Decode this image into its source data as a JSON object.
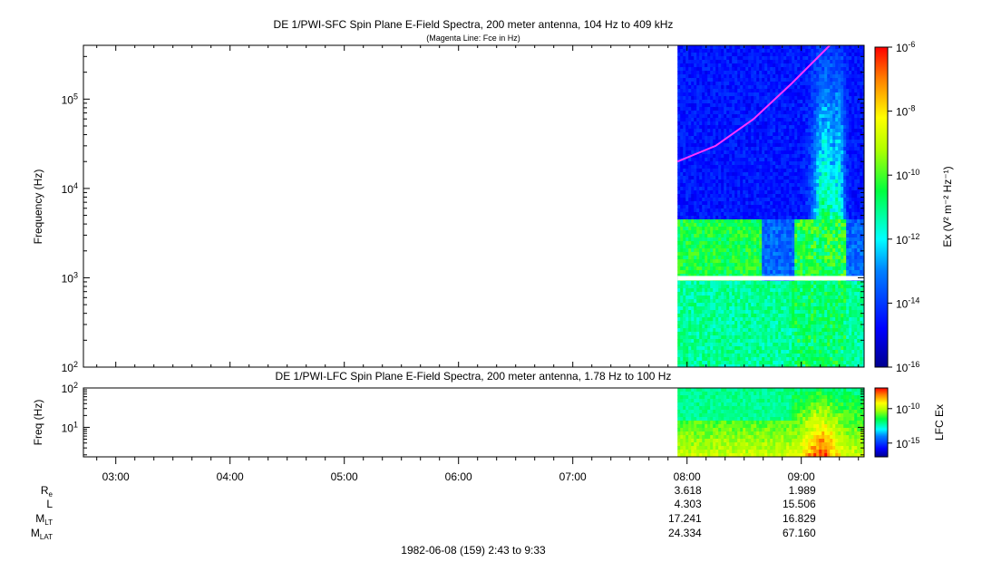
{
  "chart_data": [
    {
      "type": "heatmap",
      "title": "DE 1/PWI-SFC  Spin Plane E-Field Spectra, 200 meter antenna, 104 Hz to 409 kHz",
      "subtitle": "(Magenta Line: Fce in Hz)",
      "ylabel": "Frequency (Hz)",
      "yscale": "log",
      "ylim": [
        100,
        400000
      ],
      "yticks": [
        {
          "base": "10",
          "exp": "2"
        },
        {
          "base": "10",
          "exp": "3"
        },
        {
          "base": "10",
          "exp": "4"
        },
        {
          "base": "10",
          "exp": "5"
        }
      ],
      "data_start": "07:55",
      "data_end": "09:33",
      "gap_hz": 1000,
      "fce_line": {
        "color": "#ff33ff",
        "points": [
          [
            "07:55",
            20000
          ],
          [
            "08:15",
            30000
          ],
          [
            "08:35",
            60000
          ],
          [
            "08:55",
            150000
          ],
          [
            "09:15",
            400000
          ]
        ]
      },
      "colorbar": {
        "label": "Ex (V² m⁻² Hz⁻¹)",
        "log_range": [
          -16,
          -6
        ],
        "ticks": [
          {
            "base": "10",
            "exp": "-6"
          },
          {
            "base": "10",
            "exp": "-8"
          },
          {
            "base": "10",
            "exp": "-10"
          },
          {
            "base": "10",
            "exp": "-12"
          },
          {
            "base": "10",
            "exp": "-14"
          },
          {
            "base": "10",
            "exp": "-16"
          }
        ]
      }
    },
    {
      "type": "heatmap",
      "title": "DE 1/PWI-LFC  Spin Plane E-Field Spectra, 200 meter antenna, 1.78 Hz to 100 Hz",
      "ylabel": "Freq (Hz)",
      "yscale": "log",
      "ylim": [
        1.78,
        100
      ],
      "yticks": [
        {
          "base": "10",
          "exp": "1"
        },
        {
          "base": "10",
          "exp": "2"
        }
      ],
      "data_start": "07:55",
      "data_end": "09:33",
      "colorbar": {
        "label": "LFC Ex",
        "log_range": [
          -17,
          -7
        ],
        "ticks": [
          {
            "base": "10",
            "exp": "-10"
          },
          {
            "base": "10",
            "exp": "-15"
          }
        ]
      }
    }
  ],
  "time_axis": {
    "start": "02:43",
    "end": "09:33",
    "ticks": [
      "03:00",
      "04:00",
      "05:00",
      "06:00",
      "07:00",
      "08:00",
      "09:00"
    ]
  },
  "ephemeris": {
    "rows": [
      {
        "label": "R",
        "sub": "e",
        "values": [
          "3.618",
          "1.989"
        ]
      },
      {
        "label": "L",
        "sub": "",
        "values": [
          "4.303",
          "15.506"
        ]
      },
      {
        "label": "M",
        "sub": "LT",
        "values": [
          "17.241",
          "16.829"
        ]
      },
      {
        "label": "M",
        "sub": "LAT",
        "values": [
          "24.334",
          "67.160"
        ]
      }
    ],
    "columns_at": [
      "08:00",
      "09:00"
    ]
  },
  "footer": "1982-06-08 (159) 2:43 to 9:33"
}
